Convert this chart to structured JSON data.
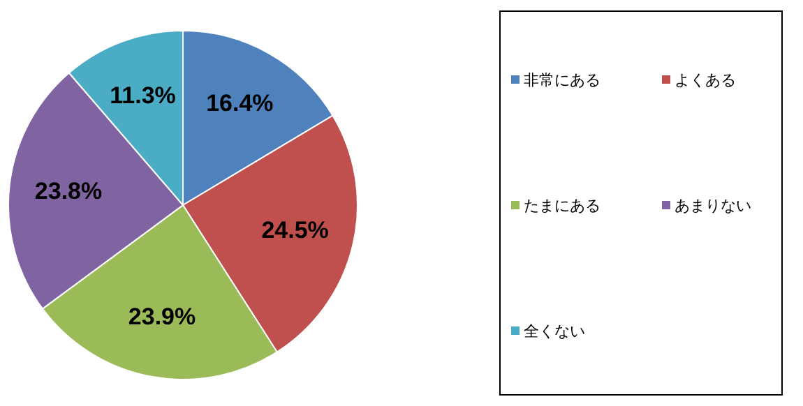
{
  "chart_data": {
    "type": "pie",
    "categories": [
      "非常にある",
      "よくある",
      "たまにある",
      "あまりない",
      "全くない"
    ],
    "values": [
      16.4,
      24.5,
      23.9,
      23.8,
      11.3
    ],
    "colors": [
      "#4f81bd",
      "#c0504d",
      "#9bbb59",
      "#8064a2",
      "#4bacc6"
    ],
    "value_labels": [
      "16.4%",
      "24.5%",
      "23.9%",
      "23.8%",
      "11.3%"
    ],
    "legend": "right"
  }
}
